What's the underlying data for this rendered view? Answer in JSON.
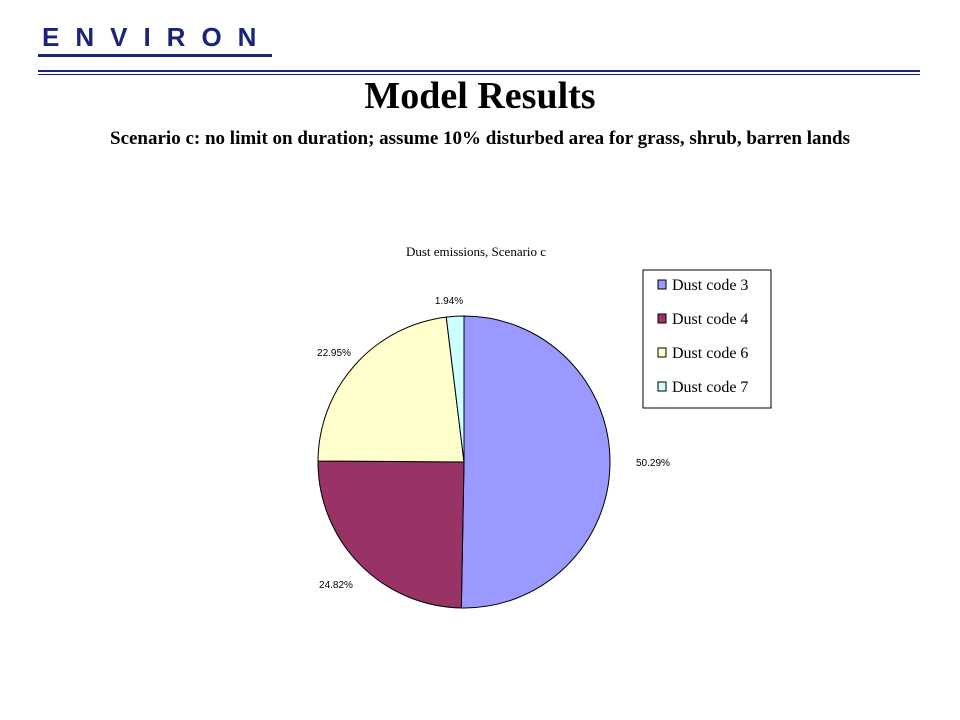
{
  "header": {
    "logo_text": "ENVIRON",
    "title": "Model Results",
    "subtitle": "Scenario c: no limit on duration; assume 10% disturbed area for grass, shrub, barren lands"
  },
  "chart_data": {
    "type": "pie",
    "title": "Dust emissions, Scenario c",
    "series": [
      {
        "name": "Dust code 3",
        "value": 50.29,
        "label": "50.29%",
        "color": "#9999ff"
      },
      {
        "name": "Dust code 4",
        "value": 24.82,
        "label": "24.82%",
        "color": "#993366"
      },
      {
        "name": "Dust code 6",
        "value": 22.95,
        "label": "22.95%",
        "color": "#ffffcc"
      },
      {
        "name": "Dust code 7",
        "value": 1.94,
        "label": "1.94%",
        "color": "#ccffff"
      }
    ],
    "legend_position": "right",
    "start_angle": "12 o'clock",
    "direction": "clockwise"
  }
}
